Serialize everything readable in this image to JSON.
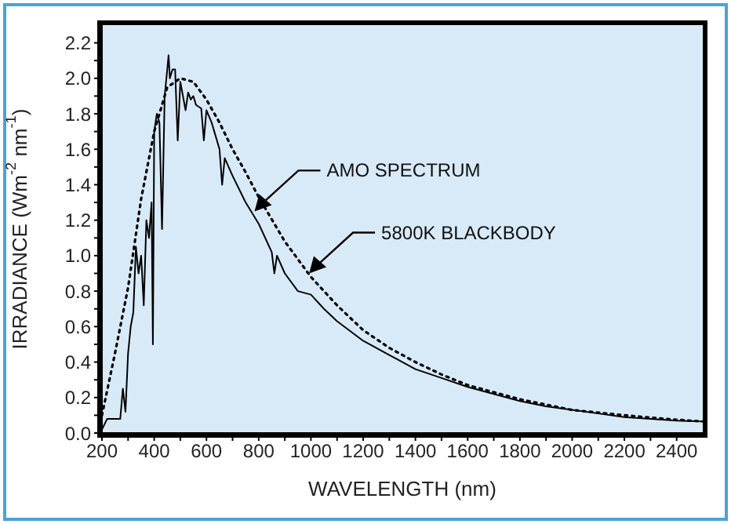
{
  "chart_data": {
    "type": "line",
    "xlabel": "WAVELENGTH (nm)",
    "ylabel": "IRRADIANCE (Wm$^{-2}$ nm$^{-1}$)",
    "xlim": [
      200,
      2500
    ],
    "ylim": [
      0,
      2.3
    ],
    "xticks": [
      200,
      {
        "value": 300,
        "label": null
      },
      400,
      {
        "value": 500,
        "label": null
      },
      600,
      {
        "value": 700,
        "label": null
      },
      800,
      {
        "value": 900,
        "label": null
      },
      1000,
      {
        "value": 1100,
        "label": null
      },
      1200,
      {
        "value": 1300,
        "label": null
      },
      1400,
      {
        "value": 1500,
        "label": null
      },
      1600,
      {
        "value": 1700,
        "label": null
      },
      1800,
      {
        "value": 1900,
        "label": null
      },
      2000,
      {
        "value": 2100,
        "label": null
      },
      2200,
      {
        "value": 2300,
        "label": null
      },
      2400
    ],
    "yticks": [
      {
        "value": 0,
        "label": "0.0"
      },
      {
        "value": 0.1,
        "label": null
      },
      {
        "value": 0.2,
        "label": "0.2"
      },
      {
        "value": 0.3,
        "label": null
      },
      {
        "value": 0.4,
        "label": "0.4"
      },
      {
        "value": 0.5,
        "label": null
      },
      {
        "value": 0.6,
        "label": "0.6"
      },
      {
        "value": 0.7,
        "label": null
      },
      {
        "value": 0.8,
        "label": "0.8"
      },
      {
        "value": 0.9,
        "label": null
      },
      {
        "value": 1,
        "label": "1.0"
      },
      {
        "value": 1.1,
        "label": null
      },
      {
        "value": 1.2,
        "label": "1.2"
      },
      {
        "value": 1.3,
        "label": null
      },
      {
        "value": 1.4,
        "label": "1.4"
      },
      {
        "value": 1.5,
        "label": null
      },
      {
        "value": 1.6,
        "label": "1.6"
      },
      {
        "value": 1.7,
        "label": null
      },
      {
        "value": 1.8,
        "label": "1.8"
      },
      {
        "value": 1.9,
        "label": null
      },
      {
        "value": 2,
        "label": "2.0"
      },
      {
        "value": 2.1,
        "label": null
      },
      {
        "value": 2.2,
        "label": "2.2"
      }
    ],
    "grid": false,
    "legend": false,
    "marker": "none",
    "series": [
      {
        "color": "#000000",
        "line_style": "solid",
        "x": [
          200,
          220,
          250,
          270,
          280,
          290,
          300,
          310,
          320,
          330,
          340,
          350,
          360,
          370,
          380,
          390,
          395,
          400,
          410,
          420,
          430,
          440,
          450,
          455,
          460,
          470,
          480,
          490,
          500,
          510,
          520,
          530,
          540,
          550,
          560,
          580,
          590,
          600,
          620,
          650,
          660,
          670,
          700,
          750,
          800,
          850,
          860,
          870,
          900,
          950,
          1000,
          1050,
          1100,
          1200,
          1300,
          1400,
          1500,
          1600,
          1700,
          1800,
          1900,
          2000,
          2100,
          2200,
          2300,
          2400,
          2500
        ],
        "values": [
          0.02,
          0.08,
          0.08,
          0.08,
          0.25,
          0.12,
          0.45,
          0.6,
          0.68,
          1.05,
          0.9,
          1.0,
          0.72,
          1.2,
          1.1,
          1.3,
          0.5,
          1.7,
          1.8,
          1.75,
          1.15,
          1.9,
          2.05,
          2.13,
          2.0,
          2.05,
          2.05,
          1.65,
          1.98,
          1.9,
          1.82,
          1.92,
          1.88,
          1.9,
          1.85,
          1.83,
          1.65,
          1.82,
          1.75,
          1.6,
          1.4,
          1.55,
          1.45,
          1.3,
          1.18,
          1.02,
          0.9,
          1.0,
          0.9,
          0.8,
          0.78,
          0.7,
          0.63,
          0.52,
          0.44,
          0.36,
          0.31,
          0.26,
          0.22,
          0.18,
          0.15,
          0.13,
          0.11,
          0.09,
          0.08,
          0.07,
          0.065
        ]
      },
      {
        "color": "#000000",
        "line_style": "dotted",
        "x": [
          200,
          250,
          300,
          350,
          400,
          450,
          500,
          550,
          600,
          650,
          700,
          750,
          800,
          900,
          1000,
          1100,
          1200,
          1300,
          1400,
          1500,
          1600,
          1800,
          2000,
          2200,
          2400,
          2500
        ],
        "values": [
          0.1,
          0.45,
          0.82,
          1.32,
          1.7,
          1.95,
          2.0,
          1.98,
          1.88,
          1.75,
          1.6,
          1.47,
          1.33,
          1.08,
          0.88,
          0.72,
          0.58,
          0.48,
          0.4,
          0.33,
          0.27,
          0.19,
          0.13,
          0.1,
          0.075,
          0.065
        ]
      }
    ],
    "annotations": [
      {
        "text": "AMO SPECTRUM",
        "x": 784,
        "y": 1.25
      },
      {
        "text": "5800K BLACKBODY",
        "x": 993,
        "y": 0.9
      }
    ]
  }
}
